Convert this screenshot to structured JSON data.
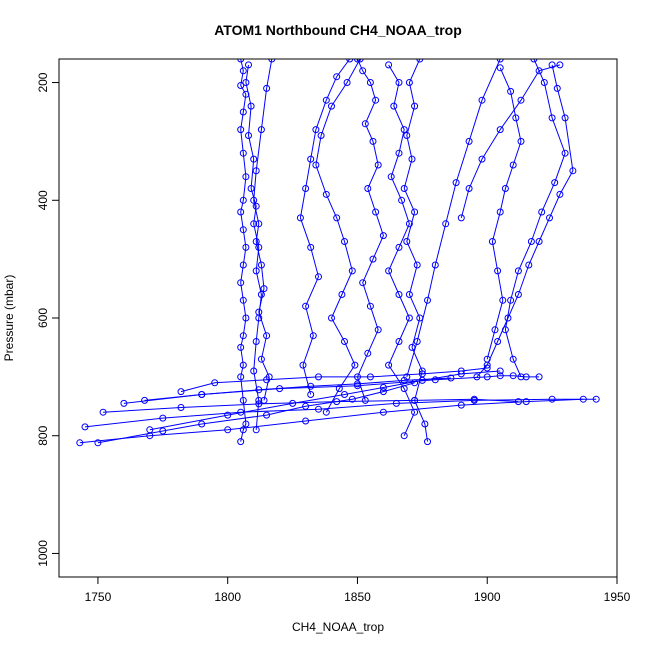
{
  "chart_data": {
    "type": "line",
    "title": "ATOM1 Northbound CH4_NOAA_trop",
    "xlabel": "CH4_NOAA_trop",
    "ylabel": "Pressure (mbar)",
    "xlim": [
      1735,
      1950
    ],
    "ylim": [
      1040,
      160
    ],
    "y_reversed": true,
    "x_ticks": [
      1750,
      1800,
      1850,
      1900,
      1950
    ],
    "y_ticks": [
      200,
      400,
      600,
      800,
      1000
    ],
    "grid": false,
    "legend": "none",
    "marker": "open-circle",
    "color": "#0000ff",
    "series": [
      {
        "x": [
          1805,
          1806,
          1805,
          1807,
          1806,
          1805,
          1806,
          1807,
          1806,
          1805,
          1806,
          1807,
          1806,
          1805,
          1806,
          1807,
          1806,
          1805,
          1806,
          1805,
          1806,
          1807,
          1806,
          1805
        ],
        "y": [
          160,
          180,
          205,
          220,
          250,
          280,
          320,
          360,
          400,
          420,
          450,
          480,
          510,
          540,
          570,
          600,
          630,
          650,
          680,
          700,
          740,
          780,
          790,
          810
        ]
      },
      {
        "x": [
          1808,
          1807,
          1809,
          1808,
          1810,
          1809,
          1811,
          1810,
          1812,
          1811,
          1813,
          1812,
          1811,
          1810,
          1812,
          1811
        ],
        "y": [
          170,
          200,
          240,
          290,
          330,
          380,
          410,
          440,
          480,
          520,
          560,
          600,
          640,
          690,
          740,
          790
        ]
      },
      {
        "x": [
          1817,
          1815,
          1813,
          1811,
          1810,
          1812,
          1811,
          1813,
          1814,
          1812,
          1815,
          1813,
          1816,
          1814
        ],
        "y": [
          160,
          210,
          280,
          350,
          400,
          440,
          470,
          510,
          550,
          590,
          630,
          670,
          700,
          740
        ]
      },
      {
        "x": [
          1847,
          1842,
          1838,
          1834,
          1832,
          1830,
          1828,
          1832,
          1835,
          1830,
          1833,
          1829,
          1832
        ],
        "y": [
          160,
          190,
          230,
          280,
          330,
          380,
          430,
          480,
          530,
          580,
          630,
          680,
          730
        ]
      },
      {
        "x": [
          1851,
          1846,
          1840,
          1836,
          1834,
          1838,
          1842,
          1845,
          1848,
          1844,
          1840,
          1845,
          1849,
          1843,
          1838
        ],
        "y": [
          160,
          200,
          240,
          290,
          340,
          390,
          430,
          470,
          520,
          560,
          600,
          640,
          680,
          720,
          760
        ]
      },
      {
        "x": [
          1850,
          1852,
          1855,
          1857,
          1853,
          1856,
          1858,
          1854,
          1857,
          1860,
          1856,
          1852,
          1855,
          1858,
          1854,
          1850,
          1853
        ],
        "y": [
          160,
          180,
          200,
          230,
          270,
          300,
          340,
          380,
          420,
          460,
          500,
          540,
          580,
          620,
          660,
          700,
          740
        ]
      },
      {
        "x": [
          1862,
          1866,
          1864,
          1868,
          1866,
          1863,
          1867,
          1870,
          1866,
          1862,
          1866,
          1870,
          1866,
          1862,
          1868,
          1872,
          1868
        ],
        "y": [
          170,
          200,
          240,
          280,
          320,
          360,
          400,
          440,
          480,
          520,
          560,
          600,
          640,
          680,
          720,
          760,
          800
        ]
      },
      {
        "x": [
          1874,
          1870,
          1872,
          1869,
          1871,
          1868,
          1872,
          1869,
          1873,
          1870,
          1874,
          1871,
          1875,
          1872,
          1876,
          1877
        ],
        "y": [
          160,
          200,
          240,
          290,
          330,
          380,
          420,
          470,
          510,
          560,
          600,
          650,
          690,
          740,
          780,
          810
        ]
      },
      {
        "x": [
          1905,
          1898,
          1893,
          1888,
          1884,
          1880,
          1877,
          1873,
          1869
        ],
        "y": [
          160,
          230,
          300,
          370,
          440,
          510,
          570,
          640,
          700
        ]
      },
      {
        "x": [
          1905,
          1909,
          1911,
          1913,
          1910,
          1907,
          1905,
          1902,
          1904,
          1906,
          1903,
          1900
        ],
        "y": [
          175,
          215,
          260,
          300,
          340,
          380,
          420,
          470,
          520,
          570,
          620,
          670
        ]
      },
      {
        "x": [
          1918,
          1922,
          1925,
          1930,
          1926,
          1921,
          1917,
          1912,
          1909,
          1907,
          1910,
          1913
        ],
        "y": [
          160,
          200,
          260,
          320,
          370,
          420,
          470,
          520,
          570,
          620,
          670,
          700
        ]
      },
      {
        "x": [
          1925,
          1927,
          1930,
          1933,
          1928,
          1924,
          1920,
          1916,
          1912,
          1908,
          1904,
          1900,
          1896
        ],
        "y": [
          170,
          210,
          260,
          350,
          390,
          430,
          470,
          510,
          560,
          600,
          640,
          680,
          700
        ]
      },
      {
        "x": [
          1928,
          1920,
          1913,
          1905,
          1898,
          1893,
          1890
        ],
        "y": [
          170,
          180,
          230,
          280,
          330,
          380,
          430
        ]
      },
      {
        "x": [
          1760,
          1790,
          1820,
          1850,
          1880,
          1900,
          1905,
          1910,
          1915,
          1920
        ],
        "y": [
          745,
          730,
          720,
          715,
          705,
          700,
          698,
          698,
          700,
          700
        ]
      },
      {
        "x": [
          1745,
          1775,
          1805,
          1835,
          1865,
          1895,
          1925,
          1942
        ],
        "y": [
          785,
          770,
          760,
          755,
          745,
          740,
          738,
          738
        ]
      },
      {
        "x": [
          1743,
          1770,
          1800,
          1830,
          1860,
          1890,
          1915,
          1937
        ],
        "y": [
          812,
          800,
          790,
          775,
          760,
          748,
          742,
          738
        ]
      },
      {
        "x": [
          1752,
          1782,
          1812,
          1842,
          1872,
          1895,
          1912
        ],
        "y": [
          760,
          752,
          746,
          742,
          740,
          738,
          742
        ]
      },
      {
        "x": [
          1750,
          1775,
          1790,
          1815,
          1830,
          1848,
          1860,
          1872
        ],
        "y": [
          812,
          792,
          780,
          765,
          750,
          738,
          725,
          710
        ]
      },
      {
        "x": [
          1770,
          1800,
          1825,
          1845,
          1860,
          1875,
          1890,
          1905
        ],
        "y": [
          790,
          765,
          745,
          730,
          718,
          706,
          695,
          690
        ]
      },
      {
        "x": [
          1782,
          1795,
          1815,
          1835,
          1855,
          1875,
          1890,
          1900
        ],
        "y": [
          725,
          710,
          705,
          700,
          700,
          695,
          690,
          685
        ]
      },
      {
        "x": [
          1768,
          1790,
          1812,
          1832,
          1850,
          1868,
          1886
        ],
        "y": [
          740,
          730,
          722,
          716,
          712,
          706,
          702
        ]
      }
    ]
  }
}
